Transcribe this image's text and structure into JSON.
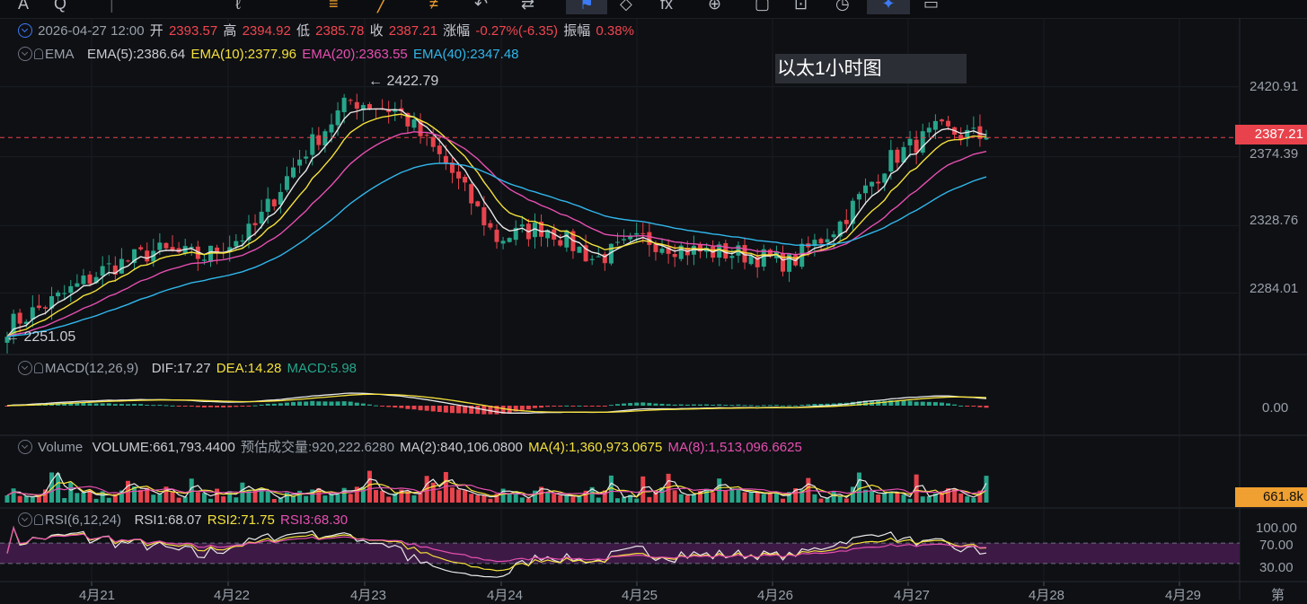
{
  "toolbar": {
    "items": [
      {
        "name": "symbol-icon",
        "glyph": "A"
      },
      {
        "name": "search-icon",
        "glyph": "Q"
      },
      {
        "name": "compare-icon",
        "glyph": "⊕"
      },
      {
        "name": "bookmark-icon",
        "glyph": "⚑"
      },
      {
        "name": "alert-icon",
        "glyph": "◇"
      },
      {
        "name": "indicator-icon",
        "glyph": "fx"
      },
      {
        "name": "layout-icon",
        "glyph": "▢"
      },
      {
        "name": "settings-icon",
        "glyph": "⚙"
      },
      {
        "name": "clock-icon",
        "glyph": "◷"
      },
      {
        "name": "crosshair-icon",
        "glyph": "✦"
      },
      {
        "name": "camera-icon",
        "glyph": "▭"
      }
    ]
  },
  "info": {
    "datetime": "2026-04-27 12:00",
    "open_label": "开",
    "open": "2393.57",
    "high_label": "高",
    "high": "2394.92",
    "low_label": "低",
    "low": "2385.78",
    "close_label": "收",
    "close": "2387.21",
    "change_label": "涨幅",
    "change": "-0.27%(-6.35)",
    "amp_label": "振幅",
    "amp": "0.38%"
  },
  "ema": {
    "name": "EMA",
    "ema5": "EMA(5):2386.64",
    "ema10": "EMA(10):2377.96",
    "ema20": "EMA(20):2363.55",
    "ema40": "EMA(40):2347.48"
  },
  "note": "以太1小时图",
  "max_label": "← 2422.79",
  "min_label": "← 2251.05",
  "price_axis": [
    "2420.91",
    "2374.39",
    "2328.76",
    "2284.01"
  ],
  "current_price": "2387.21",
  "macd": {
    "name": "MACD(12,26,9)",
    "dif": "DIF:17.27",
    "dea": "DEA:14.28",
    "macd": "MACD:5.98",
    "axis": "0.00"
  },
  "volume": {
    "name": "Volume",
    "vol": "VOLUME:661,793.4400",
    "est": "预估成交量:920,222.6280",
    "ma2": "MA(2):840,106.0800",
    "ma4": "MA(4):1,360,973.0675",
    "ma8": "MA(8):1,513,096.6625",
    "axis_tag": "661.8k"
  },
  "rsi": {
    "name": "RSI(6,12,24)",
    "rsi1": "RSI1:68.07",
    "rsi2": "RSI2:71.75",
    "rsi3": "RSI3:68.30",
    "axis": [
      "100.00",
      "70.00",
      "30.00"
    ]
  },
  "time_axis": [
    "4月21",
    "4月22",
    "4月23",
    "4月24",
    "4月25",
    "4月26",
    "4月27",
    "4月28",
    "4月29",
    "第"
  ],
  "colors": {
    "up": "#27a58a",
    "down": "#e8434c",
    "ema5": "#e8e8e8",
    "ema10": "#f5e13b",
    "ema20": "#e64fb0",
    "ema40": "#31b6ea"
  },
  "chart_data": {
    "type": "candlestick",
    "title": "以太1小时图",
    "x": [
      "4月21",
      "4月22",
      "4月23",
      "4月24",
      "4月25",
      "4月26",
      "4月27"
    ],
    "ylim": [
      2245,
      2432
    ],
    "price_path": [
      {
        "x": "4月21",
        "y": 2262
      },
      {
        "x": "4月21",
        "y": 2280
      },
      {
        "x": "4月21",
        "y": 2300
      },
      {
        "x": "4月22",
        "y": 2312
      },
      {
        "x": "4月22",
        "y": 2308
      },
      {
        "x": "4月22",
        "y": 2325
      },
      {
        "x": "4月22",
        "y": 2375
      },
      {
        "x": "4月23",
        "y": 2412
      },
      {
        "x": "4月23",
        "y": 2405
      },
      {
        "x": "4月23",
        "y": 2368
      },
      {
        "x": "4月24",
        "y": 2320
      },
      {
        "x": "4月24",
        "y": 2328
      },
      {
        "x": "4月24",
        "y": 2306
      },
      {
        "x": "4月25",
        "y": 2320
      },
      {
        "x": "4月25",
        "y": 2312
      },
      {
        "x": "4月26",
        "y": 2310
      },
      {
        "x": "4月26",
        "y": 2304
      },
      {
        "x": "4月27",
        "y": 2330
      },
      {
        "x": "4月27",
        "y": 2372
      },
      {
        "x": "4月27",
        "y": 2392
      },
      {
        "x": "4月27",
        "y": 2387
      }
    ],
    "series": [
      {
        "name": "EMA(5)",
        "last": 2386.64
      },
      {
        "name": "EMA(10)",
        "last": 2377.96
      },
      {
        "name": "EMA(20)",
        "last": 2363.55
      },
      {
        "name": "EMA(40)",
        "last": 2347.48
      }
    ],
    "max": 2422.79,
    "min": 2251.05,
    "last_close": 2387.21,
    "macd": {
      "dif": 17.27,
      "dea": 14.28,
      "macd": 5.98
    },
    "rsi": {
      "rsi1": 68.07,
      "rsi2": 71.75,
      "rsi3": 68.3,
      "levels": [
        100,
        70,
        30
      ]
    },
    "volume_last": 661793.44
  }
}
